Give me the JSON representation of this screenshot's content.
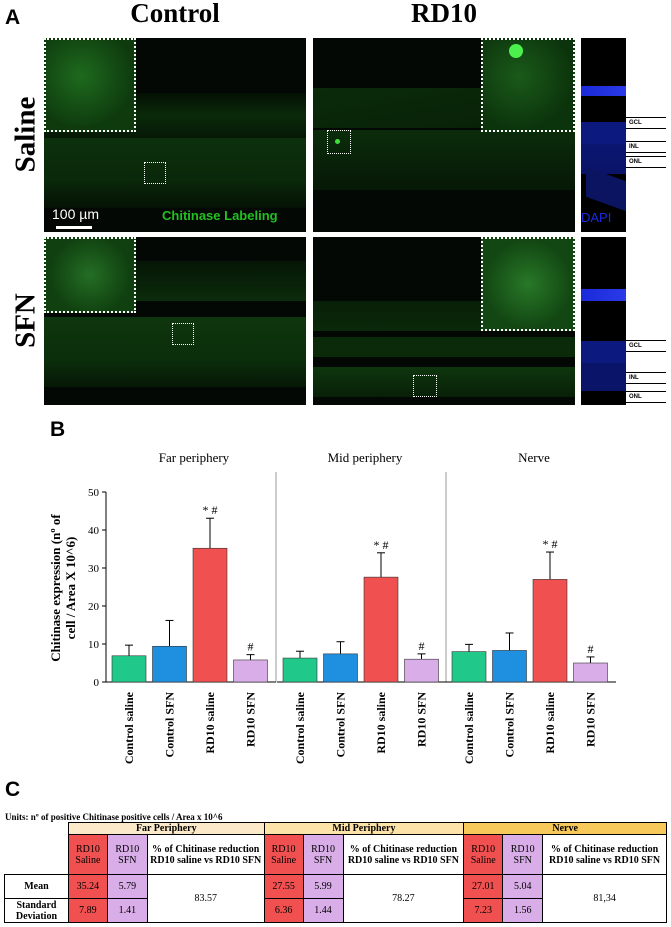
{
  "figure": {
    "panel_a": {
      "letter": "A",
      "col_titles": [
        "Control",
        "RD10"
      ],
      "row_titles": [
        "Saline",
        "SFN"
      ],
      "scalebar_label": "100 µm",
      "stain_label": "Chitinase Labeling",
      "dapi_label": "DAPI",
      "layer_labels": [
        "GCL",
        "INL",
        "ONL"
      ]
    },
    "panel_b": {
      "letter": "B"
    },
    "panel_c": {
      "letter": "C",
      "units": "Units: nº of positive Chitinase positive cells / Area x 10^6",
      "regions": [
        "Far Periphery",
        "Mid Periphery",
        "Nerve"
      ],
      "sub_headers": {
        "saline": "RD10 Saline",
        "sfn": "RD10 SFN",
        "reduction": "% of Chitinase reduction RD10 saline vs RD10 SFN"
      },
      "row_labels": [
        "Mean",
        "Standard Deviation"
      ],
      "values": {
        "far_periphery": {
          "mean_saline": "35.24",
          "mean_sfn": "5.79",
          "sd_saline": "7.89",
          "sd_sfn": "1.41",
          "reduction": "83.57"
        },
        "mid_periphery": {
          "mean_saline": "27.55",
          "mean_sfn": "5.99",
          "sd_saline": "6.36",
          "sd_sfn": "1.44",
          "reduction": "78.27"
        },
        "nerve": {
          "mean_saline": "27.01",
          "mean_sfn": "5.04",
          "sd_saline": "7.23",
          "sd_sfn": "1.56",
          "reduction": "81,34"
        }
      },
      "colors": {
        "saline": "#f05050",
        "sfn": "#d9aee8",
        "far_header": "#fbe9c9",
        "mid_header": "#fde3a8",
        "nerve_header": "#f7c85a"
      }
    }
  },
  "chart_data": {
    "type": "bar",
    "ylabel": "Chitinase expression (nº of cell / Area X 10^6)",
    "ylim": [
      0,
      50
    ],
    "yticks": [
      0,
      10,
      20,
      30,
      40,
      50
    ],
    "categories": [
      "Control saline",
      "Control SFN",
      "RD10 saline",
      "RD10 SFN"
    ],
    "colors": [
      "#20c98a",
      "#1f8fe0",
      "#f05050",
      "#d9aee8"
    ],
    "groups": [
      {
        "name": "Far periphery",
        "values": [
          6.9,
          9.4,
          35.2,
          5.8
        ],
        "errors": [
          2.8,
          6.8,
          7.9,
          1.4
        ],
        "marks": [
          "",
          "",
          "* #",
          "#"
        ]
      },
      {
        "name": "Mid periphery",
        "values": [
          6.3,
          7.4,
          27.6,
          6.0
        ],
        "errors": [
          1.8,
          3.2,
          6.4,
          1.4
        ],
        "marks": [
          "",
          "",
          "* #",
          "#"
        ]
      },
      {
        "name": "Nerve",
        "values": [
          8.0,
          8.3,
          27.0,
          5.0
        ],
        "errors": [
          1.9,
          4.6,
          7.2,
          1.6
        ],
        "marks": [
          "",
          "",
          "* #",
          "#"
        ]
      }
    ]
  }
}
